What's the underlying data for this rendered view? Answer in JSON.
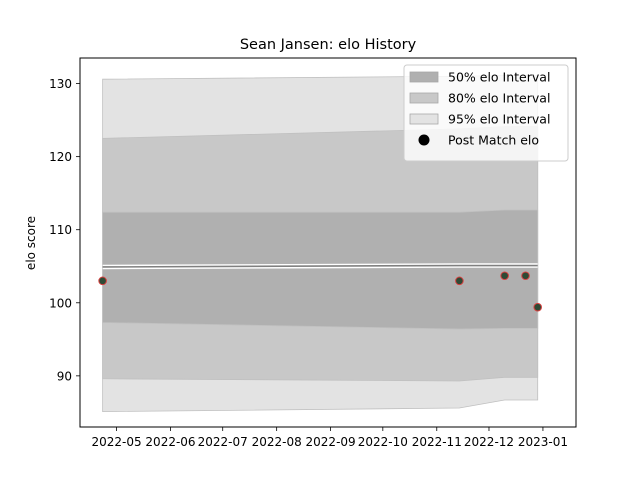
{
  "chart_data": {
    "type": "area",
    "title": "Sean Jansen: elo History",
    "xlabel": "",
    "ylabel": "elo score",
    "xlim": [
      "2022-04-10",
      "2023-01-20"
    ],
    "ylim": [
      83,
      133.5
    ],
    "x_ticks": [
      "2022-05",
      "2022-06",
      "2022-07",
      "2022-08",
      "2022-09",
      "2022-10",
      "2022-11",
      "2022-12",
      "2023-01"
    ],
    "y_ticks": [
      90,
      100,
      110,
      120,
      130
    ],
    "grid": false,
    "legend_position": "top-right",
    "legend": [
      {
        "label": "50% elo Interval",
        "kind": "patch",
        "color": "#b0b0b0"
      },
      {
        "label": "80% elo Interval",
        "kind": "patch",
        "color": "#c8c8c8"
      },
      {
        "label": "95% elo Interval",
        "kind": "patch",
        "color": "#e3e3e3"
      },
      {
        "label": "Post Match elo",
        "kind": "marker",
        "color": "#000000"
      }
    ],
    "band_dates": [
      "2022-04-23",
      "2022-11-14",
      "2022-12-10",
      "2022-12-29"
    ],
    "mean": [
      104.9,
      105.1,
      105.1,
      105.1
    ],
    "series": [
      {
        "name": "95% elo Interval",
        "color": "#e3e3e3",
        "upper": [
          130.6,
          131.0,
          131.1,
          131.1
        ],
        "lower": [
          85.1,
          85.6,
          86.7,
          86.7
        ]
      },
      {
        "name": "80% elo Interval",
        "color": "#c8c8c8",
        "upper": [
          122.5,
          123.8,
          124.1,
          124.1
        ],
        "lower": [
          89.6,
          89.3,
          89.8,
          89.8
        ]
      },
      {
        "name": "50% elo Interval",
        "color": "#b0b0b0",
        "upper": [
          112.4,
          112.4,
          112.7,
          112.7
        ],
        "lower": [
          97.3,
          96.4,
          96.5,
          96.5
        ]
      }
    ],
    "post_match_elo": {
      "name": "Post Match elo",
      "marker_color": "#2e4a35",
      "edge_color": "#d84040",
      "points": [
        {
          "date": "2022-04-23",
          "value": 103.0
        },
        {
          "date": "2022-11-14",
          "value": 103.0
        },
        {
          "date": "2022-12-10",
          "value": 103.7
        },
        {
          "date": "2022-12-22",
          "value": 103.7
        },
        {
          "date": "2022-12-29",
          "value": 99.4
        }
      ]
    }
  }
}
